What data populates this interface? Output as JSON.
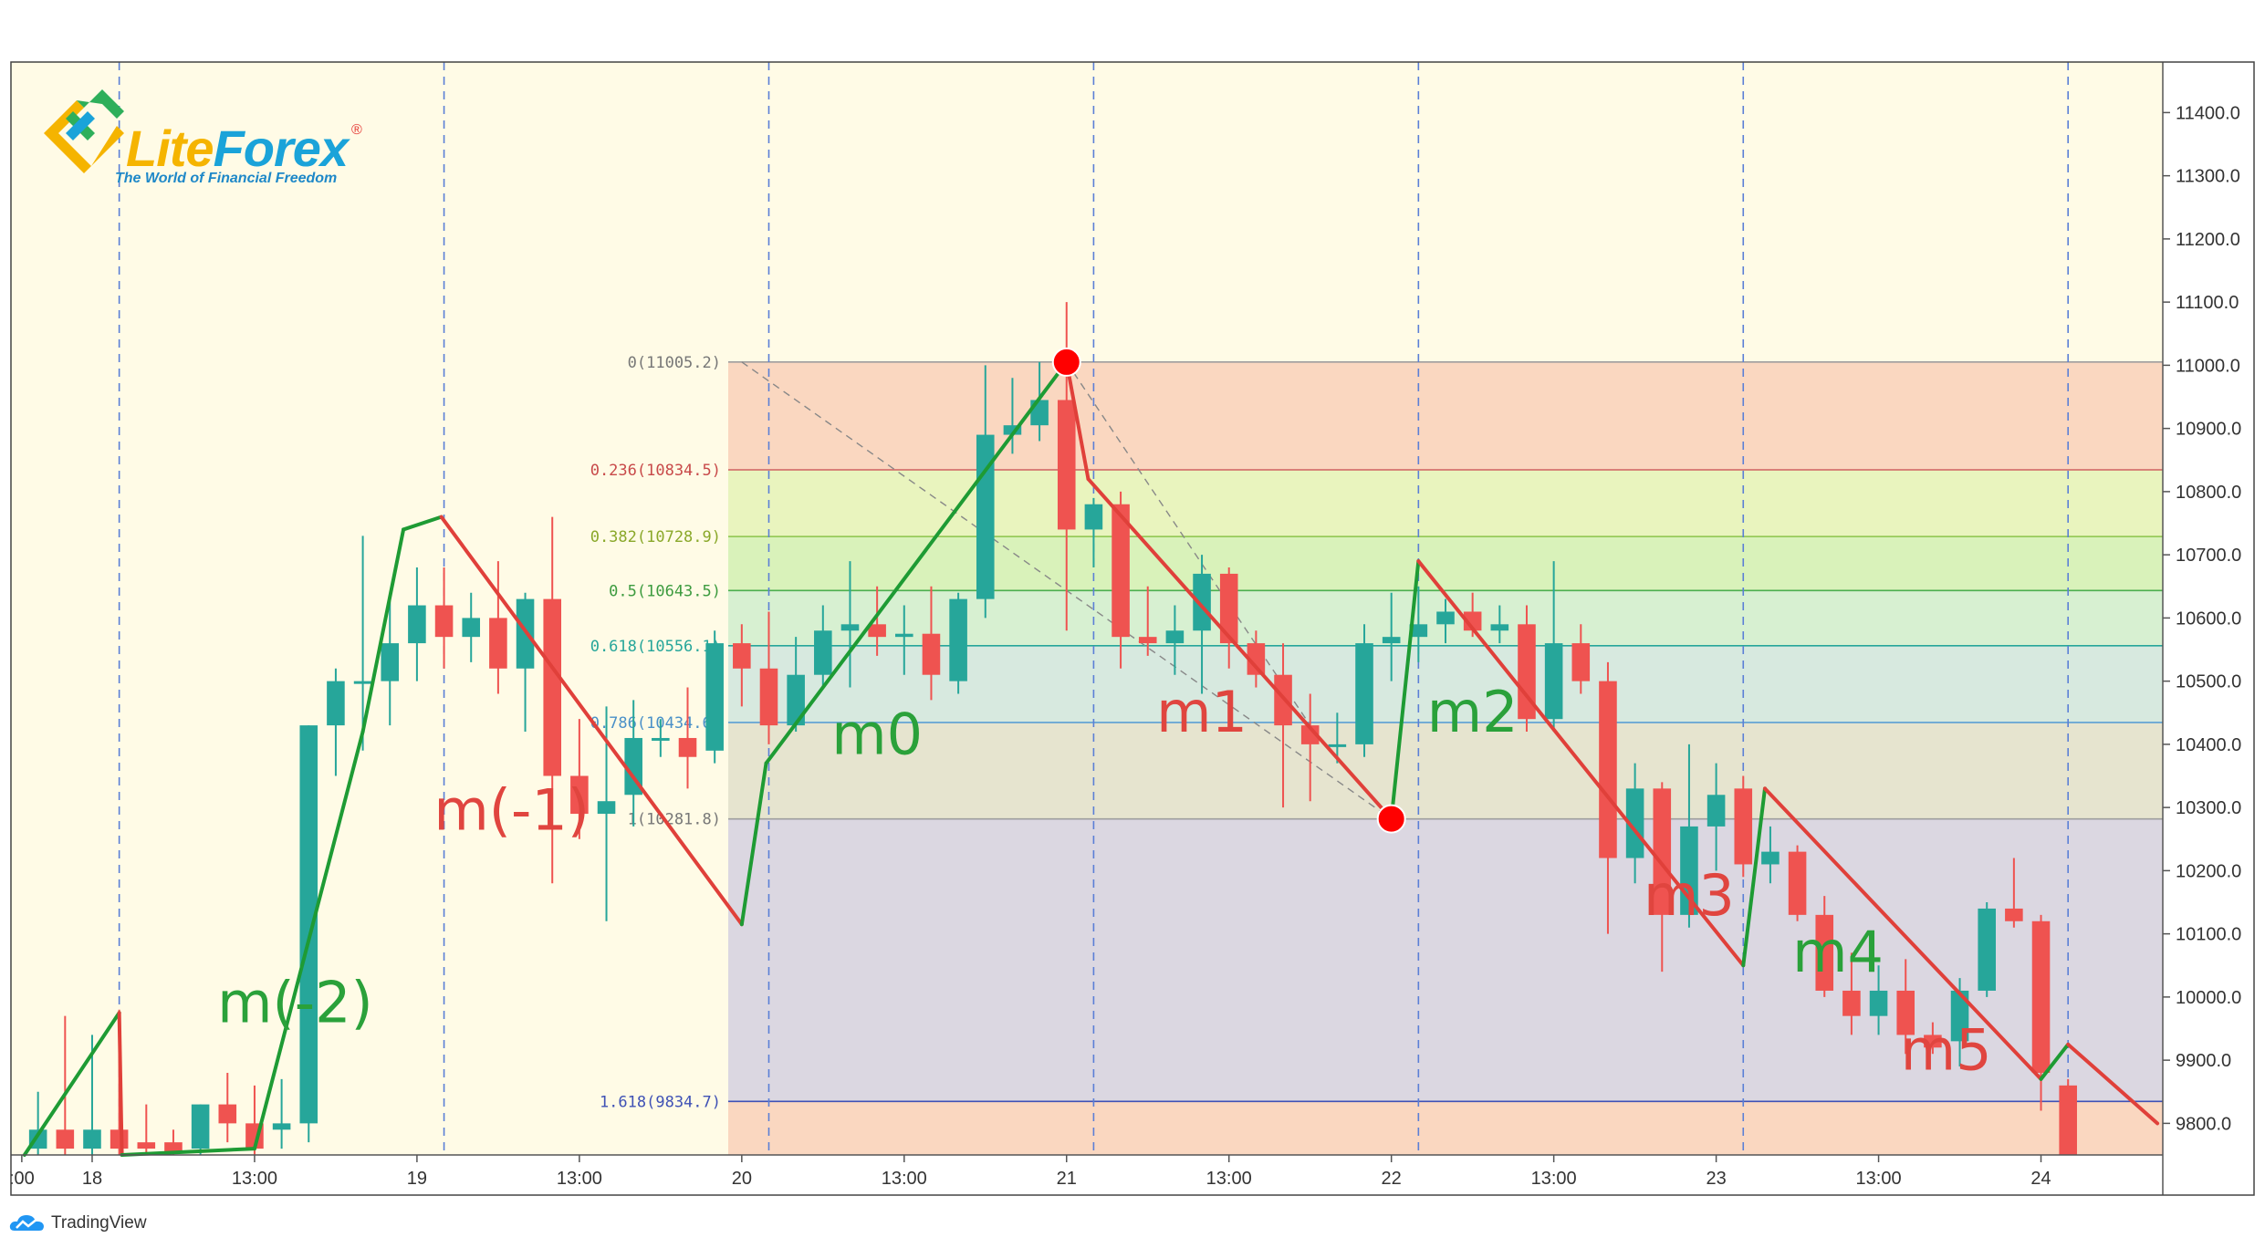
{
  "chart_data": {
    "type": "candlestick",
    "title": "",
    "x_axis": {
      "tick_labels": [
        ":00",
        "18",
        "13:00",
        "19",
        "13:00",
        "20",
        "13:00",
        "21",
        "13:00",
        "22",
        "13:00",
        "23",
        "13:00",
        "24"
      ],
      "tick_index": [
        -2.6,
        0,
        6,
        12,
        18,
        24,
        30,
        36,
        42,
        48,
        54,
        60,
        66,
        72
      ],
      "range": [
        -3,
        76.5
      ],
      "bar_hours": 4
    },
    "y_axis": {
      "range": [
        9750,
        11480
      ],
      "tick_labels": [
        "11400.0",
        "11300.0",
        "11200.0",
        "11100.0",
        "11000.0",
        "10900.0",
        "10800.0",
        "10700.0",
        "10600.0",
        "10500.0",
        "10400.0",
        "10300.0",
        "10200.0",
        "10100.0",
        "10000.0",
        "9900.0",
        "9800.0"
      ],
      "tick_values": [
        11400,
        11300,
        11200,
        11100,
        11000,
        10900,
        10800,
        10700,
        10600,
        10500,
        10400,
        10300,
        10200,
        10100,
        10000,
        9900,
        9800
      ]
    },
    "candles": [
      {
        "i": -2,
        "o": 9760,
        "h": 9850,
        "l": 9740,
        "c": 9790
      },
      {
        "i": -1,
        "o": 9790,
        "h": 9970,
        "l": 9740,
        "c": 9760
      },
      {
        "i": 0,
        "o": 9760,
        "h": 9940,
        "l": 9730,
        "c": 9790
      },
      {
        "i": 1,
        "o": 9790,
        "h": 9980,
        "l": 9740,
        "c": 9760
      },
      {
        "i": 2,
        "o": 9770,
        "h": 9830,
        "l": 9740,
        "c": 9760
      },
      {
        "i": 3,
        "o": 9770,
        "h": 9790,
        "l": 9740,
        "c": 9755
      },
      {
        "i": 4,
        "o": 9760,
        "h": 9830,
        "l": 9740,
        "c": 9830
      },
      {
        "i": 5,
        "o": 9830,
        "h": 9880,
        "l": 9770,
        "c": 9800
      },
      {
        "i": 6,
        "o": 9800,
        "h": 9860,
        "l": 9740,
        "c": 9760
      },
      {
        "i": 7,
        "o": 9790,
        "h": 9870,
        "l": 9760,
        "c": 9800
      },
      {
        "i": 8,
        "o": 9800,
        "h": 10430,
        "l": 9770,
        "c": 10430
      },
      {
        "i": 9,
        "o": 10430,
        "h": 10520,
        "l": 10350,
        "c": 10500
      },
      {
        "i": 10,
        "o": 10500,
        "h": 10730,
        "l": 10390,
        "c": 10500
      },
      {
        "i": 11,
        "o": 10500,
        "h": 10630,
        "l": 10430,
        "c": 10560
      },
      {
        "i": 12,
        "o": 10560,
        "h": 10680,
        "l": 10500,
        "c": 10620
      },
      {
        "i": 13,
        "o": 10620,
        "h": 10680,
        "l": 10520,
        "c": 10570
      },
      {
        "i": 14,
        "o": 10570,
        "h": 10640,
        "l": 10530,
        "c": 10600
      },
      {
        "i": 15,
        "o": 10600,
        "h": 10690,
        "l": 10480,
        "c": 10520
      },
      {
        "i": 16,
        "o": 10520,
        "h": 10640,
        "l": 10420,
        "c": 10630
      },
      {
        "i": 17,
        "o": 10630,
        "h": 10760,
        "l": 10180,
        "c": 10350
      },
      {
        "i": 18,
        "o": 10350,
        "h": 10440,
        "l": 10250,
        "c": 10290
      },
      {
        "i": 19,
        "o": 10290,
        "h": 10460,
        "l": 10120,
        "c": 10310
      },
      {
        "i": 20,
        "o": 10320,
        "h": 10470,
        "l": 10270,
        "c": 10410
      },
      {
        "i": 21,
        "o": 10410,
        "h": 10440,
        "l": 10380,
        "c": 10410
      },
      {
        "i": 22,
        "o": 10410,
        "h": 10490,
        "l": 10330,
        "c": 10380
      },
      {
        "i": 23,
        "o": 10390,
        "h": 10580,
        "l": 10370,
        "c": 10560
      },
      {
        "i": 24,
        "o": 10560,
        "h": 10590,
        "l": 10460,
        "c": 10520
      },
      {
        "i": 25,
        "o": 10520,
        "h": 10610,
        "l": 10400,
        "c": 10430
      },
      {
        "i": 26,
        "o": 10430,
        "h": 10570,
        "l": 10420,
        "c": 10510
      },
      {
        "i": 27,
        "o": 10510,
        "h": 10620,
        "l": 10490,
        "c": 10580
      },
      {
        "i": 28,
        "o": 10580,
        "h": 10690,
        "l": 10490,
        "c": 10590
      },
      {
        "i": 29,
        "o": 10590,
        "h": 10650,
        "l": 10540,
        "c": 10570
      },
      {
        "i": 30,
        "o": 10570,
        "h": 10620,
        "l": 10510,
        "c": 10575
      },
      {
        "i": 31,
        "o": 10575,
        "h": 10650,
        "l": 10470,
        "c": 10510
      },
      {
        "i": 32,
        "o": 10500,
        "h": 10640,
        "l": 10480,
        "c": 10630
      },
      {
        "i": 33,
        "o": 10630,
        "h": 11000,
        "l": 10600,
        "c": 10890
      },
      {
        "i": 34,
        "o": 10890,
        "h": 10980,
        "l": 10860,
        "c": 10905
      },
      {
        "i": 35,
        "o": 10905,
        "h": 11005,
        "l": 10880,
        "c": 10945
      },
      {
        "i": 36,
        "o": 10945,
        "h": 11100,
        "l": 10580,
        "c": 10740
      },
      {
        "i": 37,
        "o": 10740,
        "h": 10790,
        "l": 10680,
        "c": 10780
      },
      {
        "i": 38,
        "o": 10780,
        "h": 10800,
        "l": 10520,
        "c": 10570
      },
      {
        "i": 39,
        "o": 10570,
        "h": 10650,
        "l": 10540,
        "c": 10560
      },
      {
        "i": 40,
        "o": 10560,
        "h": 10620,
        "l": 10510,
        "c": 10580
      },
      {
        "i": 41,
        "o": 10580,
        "h": 10700,
        "l": 10480,
        "c": 10670
      },
      {
        "i": 42,
        "o": 10670,
        "h": 10680,
        "l": 10520,
        "c": 10560
      },
      {
        "i": 43,
        "o": 10560,
        "h": 10580,
        "l": 10490,
        "c": 10510
      },
      {
        "i": 44,
        "o": 10510,
        "h": 10560,
        "l": 10300,
        "c": 10430
      },
      {
        "i": 45,
        "o": 10430,
        "h": 10480,
        "l": 10310,
        "c": 10400
      },
      {
        "i": 46,
        "o": 10400,
        "h": 10450,
        "l": 10370,
        "c": 10400
      },
      {
        "i": 47,
        "o": 10400,
        "h": 10590,
        "l": 10380,
        "c": 10560
      },
      {
        "i": 48,
        "o": 10560,
        "h": 10640,
        "l": 10500,
        "c": 10570
      },
      {
        "i": 49,
        "o": 10570,
        "h": 10650,
        "l": 10530,
        "c": 10590
      },
      {
        "i": 50,
        "o": 10590,
        "h": 10630,
        "l": 10560,
        "c": 10610
      },
      {
        "i": 51,
        "o": 10610,
        "h": 10640,
        "l": 10570,
        "c": 10580
      },
      {
        "i": 52,
        "o": 10580,
        "h": 10620,
        "l": 10560,
        "c": 10590
      },
      {
        "i": 53,
        "o": 10590,
        "h": 10620,
        "l": 10420,
        "c": 10440
      },
      {
        "i": 54,
        "o": 10440,
        "h": 10690,
        "l": 10420,
        "c": 10560
      },
      {
        "i": 55,
        "o": 10560,
        "h": 10590,
        "l": 10480,
        "c": 10500
      },
      {
        "i": 56,
        "o": 10500,
        "h": 10530,
        "l": 10100,
        "c": 10220
      },
      {
        "i": 57,
        "o": 10220,
        "h": 10370,
        "l": 10180,
        "c": 10330
      },
      {
        "i": 58,
        "o": 10330,
        "h": 10340,
        "l": 10040,
        "c": 10130
      },
      {
        "i": 59,
        "o": 10130,
        "h": 10400,
        "l": 10110,
        "c": 10270
      },
      {
        "i": 60,
        "o": 10270,
        "h": 10370,
        "l": 10200,
        "c": 10320
      },
      {
        "i": 61,
        "o": 10330,
        "h": 10350,
        "l": 10190,
        "c": 10210
      },
      {
        "i": 62,
        "o": 10210,
        "h": 10270,
        "l": 10180,
        "c": 10230
      },
      {
        "i": 63,
        "o": 10230,
        "h": 10240,
        "l": 10120,
        "c": 10130
      },
      {
        "i": 64,
        "o": 10130,
        "h": 10160,
        "l": 10000,
        "c": 10010
      },
      {
        "i": 65,
        "o": 10010,
        "h": 10070,
        "l": 9940,
        "c": 9970
      },
      {
        "i": 66,
        "o": 9970,
        "h": 10050,
        "l": 9940,
        "c": 10010
      },
      {
        "i": 67,
        "o": 10010,
        "h": 10060,
        "l": 9910,
        "c": 9940
      },
      {
        "i": 68,
        "o": 9940,
        "h": 9960,
        "l": 9910,
        "c": 9920
      },
      {
        "i": 69,
        "o": 9930,
        "h": 10030,
        "l": 9890,
        "c": 10010
      },
      {
        "i": 70,
        "o": 10010,
        "h": 10150,
        "l": 10000,
        "c": 10140
      },
      {
        "i": 71,
        "o": 10140,
        "h": 10220,
        "l": 10110,
        "c": 10120
      },
      {
        "i": 72,
        "o": 10120,
        "h": 10130,
        "l": 9820,
        "c": 9880
      },
      {
        "i": 73,
        "o": 9860,
        "h": 9870,
        "l": 9720,
        "c": 9740
      }
    ],
    "fibonacci": {
      "start_index": 24,
      "levels": [
        {
          "label": "0(11005.2)",
          "ratio": 0,
          "value": 11005.2,
          "line_color": "#9e9e9e",
          "label_color": "#777777",
          "fill_below": "rgba(240,150,120,0.35)"
        },
        {
          "label": "0.236(10834.5)",
          "ratio": 0.236,
          "value": 10834.5,
          "line_color": "#d06060",
          "label_color": "#c84a4a",
          "fill_below": "rgba(200,235,130,0.4)"
        },
        {
          "label": "0.382(10728.9)",
          "ratio": 0.382,
          "value": 10728.9,
          "line_color": "#8bc34a",
          "label_color": "#8aa82a",
          "fill_below": "rgba(160,230,120,0.4)"
        },
        {
          "label": "0.5(10643.5)",
          "ratio": 0.5,
          "value": 10643.5,
          "line_color": "#4caf50",
          "label_color": "#3d9b3f",
          "fill_below": "rgba(140,220,170,0.35)"
        },
        {
          "label": "0.618(10556.1)",
          "ratio": 0.618,
          "value": 10556.1,
          "line_color": "#26a69a",
          "label_color": "#26a69a",
          "fill_below": "rgba(140,200,210,0.35)"
        },
        {
          "label": "0.786(10434.6)",
          "ratio": 0.786,
          "value": 10434.6,
          "line_color": "#5a9fd4",
          "label_color": "#4a90c8",
          "fill_below": "rgba(200,200,180,0.45)"
        },
        {
          "label": "1(10281.8)",
          "ratio": 1,
          "value": 10281.8,
          "line_color": "#9e9e9e",
          "label_color": "#777777",
          "fill_below": "rgba(175,170,220,0.45)"
        },
        {
          "label": "1.618(9834.7)",
          "ratio": 1.618,
          "value": 9834.7,
          "line_color": "#3f51b5",
          "label_color": "#3f51b5",
          "fill_below": "rgba(240,150,120,0.35)"
        }
      ],
      "trend_points": [
        {
          "i": 24,
          "v": 11005.2
        },
        {
          "i": 48,
          "v": 10281.8
        }
      ]
    },
    "zigzag": [
      {
        "i": -2.5,
        "v": 9750,
        "dir": "up"
      },
      {
        "i": 1,
        "v": 9975,
        "dir": "down"
      },
      {
        "i": 1.1,
        "v": 9750,
        "dir": "up"
      },
      {
        "i": 6,
        "v": 9760,
        "dir": "up"
      },
      {
        "i": 10,
        "v": 10420,
        "dir": "up"
      },
      {
        "i": 11.5,
        "v": 10740,
        "dir": "up"
      },
      {
        "i": 12.9,
        "v": 10760,
        "dir": "down"
      },
      {
        "i": 24,
        "v": 10115,
        "dir": "up"
      },
      {
        "i": 24.9,
        "v": 10370,
        "dir": "up"
      },
      {
        "i": 36,
        "v": 11005,
        "dir": "down"
      },
      {
        "i": 36.8,
        "v": 10820,
        "dir": "down"
      },
      {
        "i": 48,
        "v": 10282,
        "dir": "up"
      },
      {
        "i": 49,
        "v": 10690,
        "dir": "down"
      },
      {
        "i": 61,
        "v": 10050,
        "dir": "up"
      },
      {
        "i": 61.8,
        "v": 10330,
        "dir": "down"
      },
      {
        "i": 72,
        "v": 9870,
        "dir": "up"
      },
      {
        "i": 73,
        "v": 9925,
        "dir": "down"
      },
      {
        "i": 76.3,
        "v": 9800,
        "dir": "down"
      }
    ],
    "markers": [
      {
        "i": 36,
        "v": 11005,
        "color": "#ff0000"
      },
      {
        "i": 48,
        "v": 10282,
        "color": "#ff0000"
      }
    ],
    "day_separators": [
      1,
      13,
      25,
      37,
      49,
      61,
      73
    ],
    "annotations": [
      {
        "text": "m(-2)",
        "i": 7.5,
        "v": 9960,
        "color": "#2aa13a"
      },
      {
        "text": "m(-1)",
        "i": 15.5,
        "v": 10265,
        "color": "#e0453f"
      },
      {
        "text": "m0",
        "i": 29,
        "v": 10385,
        "color": "#2aa13a"
      },
      {
        "text": "m1",
        "i": 41,
        "v": 10420,
        "color": "#e0453f"
      },
      {
        "text": "m2",
        "i": 51,
        "v": 10420,
        "color": "#2aa13a"
      },
      {
        "text": "m3",
        "i": 59,
        "v": 10130,
        "color": "#e0453f"
      },
      {
        "text": "m4",
        "i": 64.5,
        "v": 10040,
        "color": "#2aa13a"
      },
      {
        "text": "m5",
        "i": 68.5,
        "v": 9885,
        "color": "#e0453f"
      }
    ],
    "colors": {
      "background": "#fffbe6",
      "bull": "#26a69a",
      "bear": "#ef5350",
      "zigzag_up": "#1e9b34",
      "zigzag_down": "#e0403a",
      "separator": "#5b7fd6"
    }
  },
  "branding": {
    "logo_word_lite": "Lite",
    "logo_word_forex": "Forex",
    "logo_reg": "®",
    "logo_tagline": "The World of Financial Freedom",
    "tradingview": "TradingView"
  }
}
